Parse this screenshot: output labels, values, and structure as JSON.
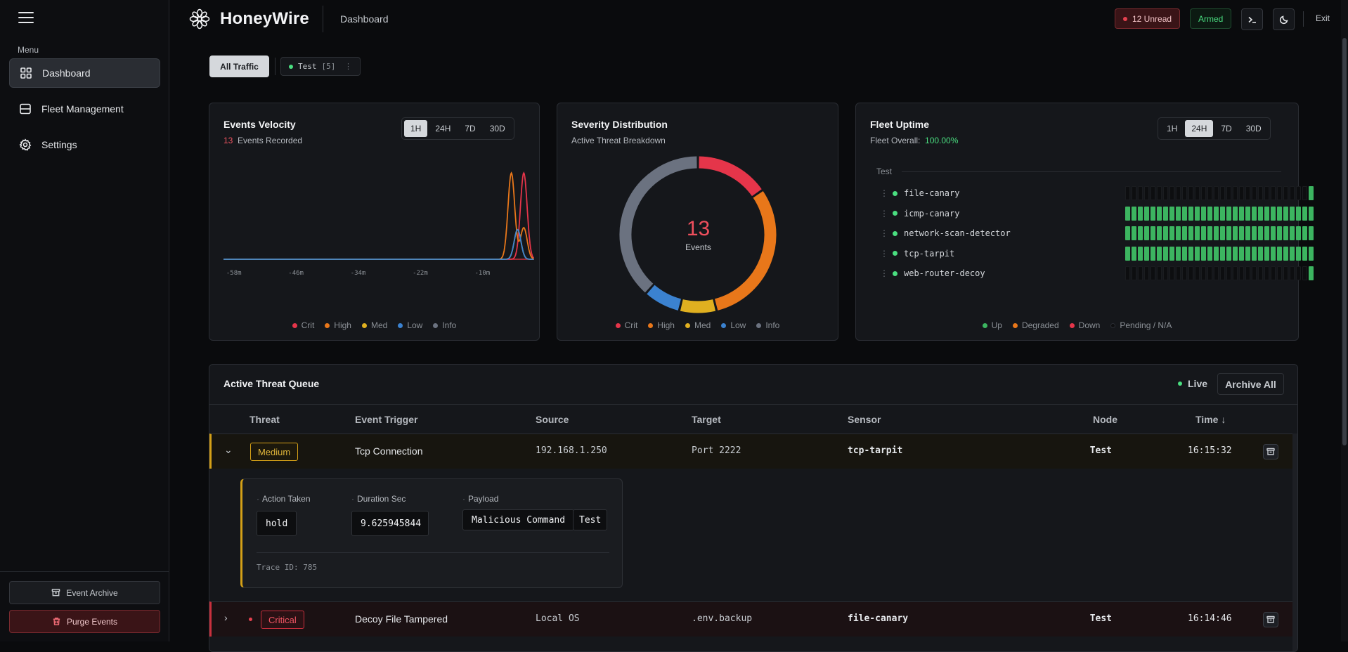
{
  "sidebar": {
    "menu_label": "Menu",
    "items": [
      {
        "label": "Dashboard",
        "icon": "grid-icon",
        "active": true
      },
      {
        "label": "Fleet Management",
        "icon": "server-icon"
      },
      {
        "label": "Settings",
        "icon": "gear-icon"
      }
    ],
    "archive_label": "Event Archive",
    "purge_label": "Purge Events"
  },
  "header": {
    "brand": "HoneyWire",
    "breadcrumb": "Dashboard",
    "unread": "12 Unread",
    "armed": "Armed",
    "exit": "Exit"
  },
  "filters": {
    "all": "All Traffic",
    "node_name": "Test",
    "node_count": "[5]"
  },
  "velocity": {
    "title": "Events Velocity",
    "count": "13",
    "count_label": "Events Recorded",
    "ranges": [
      "1H",
      "24H",
      "7D",
      "30D"
    ],
    "active_range": "1H"
  },
  "severity": {
    "title": "Severity Distribution",
    "subtitle": "Active Threat Breakdown",
    "total": "13",
    "total_label": "Events"
  },
  "uptime": {
    "title": "Fleet Uptime",
    "overall_label": "Fleet Overall:",
    "overall_value": "100.00%",
    "ranges": [
      "1H",
      "24H",
      "7D",
      "30D"
    ],
    "active_range": "24H",
    "group": "Test",
    "sensors": [
      {
        "name": "file-canary",
        "bars": "000000000000000000000000000001"
      },
      {
        "name": "icmp-canary",
        "bars": "111111111111111111111111111111"
      },
      {
        "name": "network-scan-detector",
        "bars": "111111111111111111111111111111"
      },
      {
        "name": "tcp-tarpit",
        "bars": "111111111111111111111111111111"
      },
      {
        "name": "web-router-decoy",
        "bars": "000000000000000000000000000001"
      }
    ],
    "legend": [
      {
        "label": "Up",
        "color": "#3cb560"
      },
      {
        "label": "Degraded",
        "color": "#e8771a"
      },
      {
        "label": "Down",
        "color": "#e5354a"
      },
      {
        "label": "Pending / N/A",
        "color": "#0d0e10"
      }
    ]
  },
  "severity_legend": [
    {
      "label": "Crit",
      "color": "#e5354a"
    },
    {
      "label": "High",
      "color": "#e8771a"
    },
    {
      "label": "Med",
      "color": "#e0b020"
    },
    {
      "label": "Low",
      "color": "#3b82d0"
    },
    {
      "label": "Info",
      "color": "#6b7280"
    }
  ],
  "chart_data": [
    {
      "type": "line",
      "title": "Events Velocity",
      "x_tick_labels": [
        "-58m",
        "-46m",
        "-34m",
        "-22m",
        "-10m"
      ],
      "x_range_minutes": [
        -60,
        0
      ],
      "series": [
        {
          "name": "Crit",
          "color": "#e5354a",
          "peaks": [
            {
              "minute": -2.0,
              "height": 0.93
            }
          ]
        },
        {
          "name": "High",
          "color": "#e8771a",
          "peaks": [
            {
              "minute": -4.4,
              "height": 0.93
            },
            {
              "minute": -2.0,
              "height": 0.34
            }
          ]
        },
        {
          "name": "Med",
          "color": "#e0b020",
          "peaks": [
            {
              "minute": -3.2,
              "height": 0.32
            }
          ]
        },
        {
          "name": "Low",
          "color": "#3b82d0",
          "peaks": [
            {
              "minute": -3.2,
              "height": 0.32
            }
          ]
        },
        {
          "name": "Info",
          "color": "#6b7280",
          "peaks": []
        }
      ]
    },
    {
      "type": "pie",
      "title": "Severity Distribution",
      "categories": [
        "Crit",
        "High",
        "Med",
        "Low",
        "Info"
      ],
      "values": [
        2,
        4,
        1,
        1,
        5
      ],
      "colors": [
        "#e5354a",
        "#e8771a",
        "#e0b020",
        "#3b82d0",
        "#6b7280"
      ]
    }
  ],
  "queue": {
    "title": "Active Threat Queue",
    "live": "Live",
    "archive_all": "Archive All",
    "columns": [
      "Threat",
      "Event Trigger",
      "Source",
      "Target",
      "Sensor",
      "Node",
      "Time ↓"
    ],
    "rows": [
      {
        "severity": "Medium",
        "trigger": "Tcp Connection",
        "source": "192.168.1.250",
        "target": "Port 2222",
        "sensor": "tcp-tarpit",
        "node": "Test",
        "time": "16:15:32"
      },
      {
        "severity": "Critical",
        "trigger": "Decoy File Tampered",
        "source": "Local OS",
        "target": ".env.backup",
        "sensor": "file-canary",
        "node": "Test",
        "time": "16:14:46"
      }
    ],
    "detail": {
      "action_label": "Action Taken",
      "action_value": "hold",
      "duration_label": "Duration Sec",
      "duration_value": "9.625945844",
      "payload_label": "Payload",
      "payload_values": [
        "Malicious Command",
        "Test"
      ],
      "trace": "Trace ID: 785"
    }
  }
}
